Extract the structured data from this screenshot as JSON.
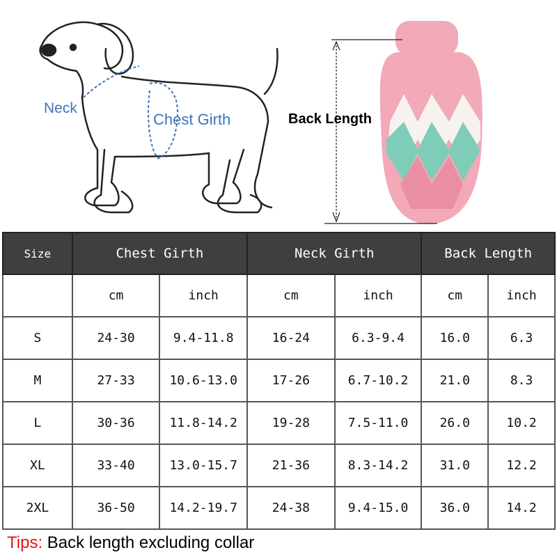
{
  "illustration": {
    "neck_label": "Neck",
    "chest_label": "Chest Girth",
    "back_label": "Back Length",
    "label_color": "#3d74b8",
    "sweater_colors": {
      "base": "#f2a9b8",
      "diamond_white": "#f6f2f0",
      "diamond_teal": "#7fcdb9",
      "diamond_pink": "#e98ea3"
    }
  },
  "table": {
    "headers": [
      "Size",
      "Chest Girth",
      "Neck Girth",
      "Back Length"
    ],
    "units": [
      "cm",
      "inch",
      "cm",
      "inch",
      "cm",
      "inch"
    ],
    "rows": [
      [
        "S",
        "24-30",
        "9.4-11.8",
        "16-24",
        "6.3-9.4",
        "16.0",
        "6.3"
      ],
      [
        "M",
        "27-33",
        "10.6-13.0",
        "17-26",
        "6.7-10.2",
        "21.0",
        "8.3"
      ],
      [
        "L",
        "30-36",
        "11.8-14.2",
        "19-28",
        "7.5-11.0",
        "26.0",
        "10.2"
      ],
      [
        "XL",
        "33-40",
        "13.0-15.7",
        "21-36",
        "8.3-14.2",
        "31.0",
        "12.2"
      ],
      [
        "2XL",
        "36-50",
        "14.2-19.7",
        "24-38",
        "9.4-15.0",
        "36.0",
        "14.2"
      ]
    ]
  },
  "tips": {
    "prefix": "Tips:",
    "text": " Back length excluding collar",
    "prefix_color": "#e0141e"
  }
}
